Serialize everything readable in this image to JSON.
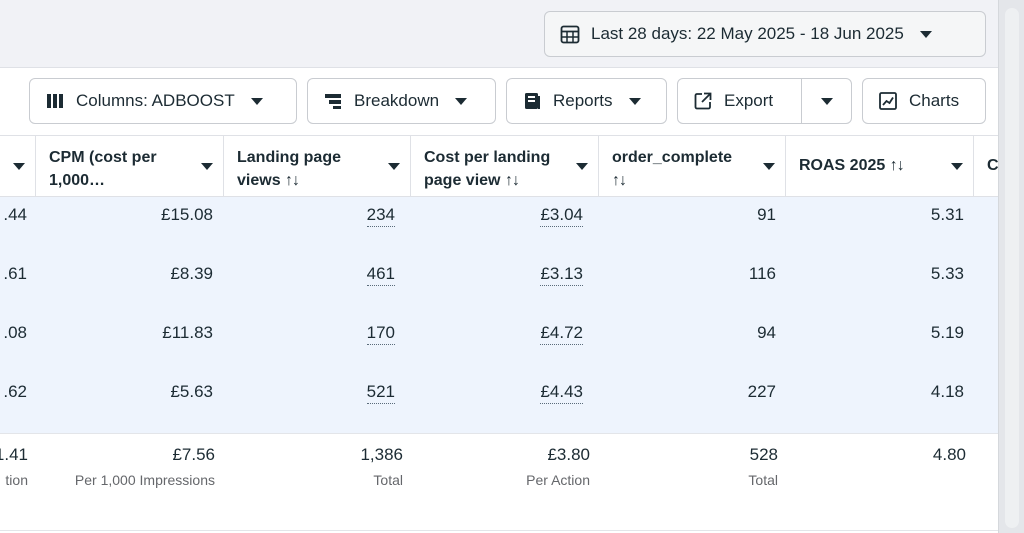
{
  "date_range": {
    "label": "Last 28 days: 22 May 2025 - 18 Jun 2025"
  },
  "toolbar": {
    "columns_label": "Columns: ADBOOST",
    "breakdown_label": "Breakdown",
    "reports_label": "Reports",
    "export_label": "Export",
    "charts_label": "Charts"
  },
  "table": {
    "headers": [
      {
        "line1": "CPM (cost per",
        "line2": "1,000…",
        "sort": ""
      },
      {
        "line1": "Landing page",
        "line2": "views",
        "sort": "↑↓"
      },
      {
        "line1": "Cost per landing",
        "line2": "page view",
        "sort": "↑↓"
      },
      {
        "line1": "order_complete",
        "line2": "",
        "sort": "↑↓"
      },
      {
        "line1": "ROAS 2025",
        "line2": "",
        "sort": "↑↓"
      },
      {
        "line1": "C",
        "line2": "",
        "sort": ""
      }
    ],
    "rows": [
      {
        "partial": ".44",
        "cpm": "£15.08",
        "lpv": "234",
        "cplpv": "£3.04",
        "orders": "91",
        "roas": "5.31"
      },
      {
        "partial": ".61",
        "cpm": "£8.39",
        "lpv": "461",
        "cplpv": "£3.13",
        "orders": "116",
        "roas": "5.33"
      },
      {
        "partial": ".08",
        "cpm": "£11.83",
        "lpv": "170",
        "cplpv": "£4.72",
        "orders": "94",
        "roas": "5.19"
      },
      {
        "partial": ".62",
        "cpm": "£5.63",
        "lpv": "521",
        "cplpv": "£4.43",
        "orders": "227",
        "roas": "4.18"
      }
    ],
    "totals": {
      "partial": {
        "value": "1.41",
        "sub": "tion"
      },
      "cpm": {
        "value": "£7.56",
        "sub": "Per 1,000 Impressions"
      },
      "lpv": {
        "value": "1,386",
        "sub": "Total"
      },
      "cplpv": {
        "value": "£3.80",
        "sub": "Per Action"
      },
      "orders": {
        "value": "528",
        "sub": "Total"
      },
      "roas": {
        "value": "4.80",
        "sub": ""
      }
    }
  },
  "icons": {
    "calendar": "calendar-icon",
    "columns": "columns-icon",
    "breakdown": "breakdown-icon",
    "reports": "reports-icon",
    "export": "export-icon",
    "charts": "chart-icon"
  },
  "colors": {
    "row_highlight": "#eef4fd",
    "text": "#1c2b33",
    "border": "#c9ccd1"
  }
}
